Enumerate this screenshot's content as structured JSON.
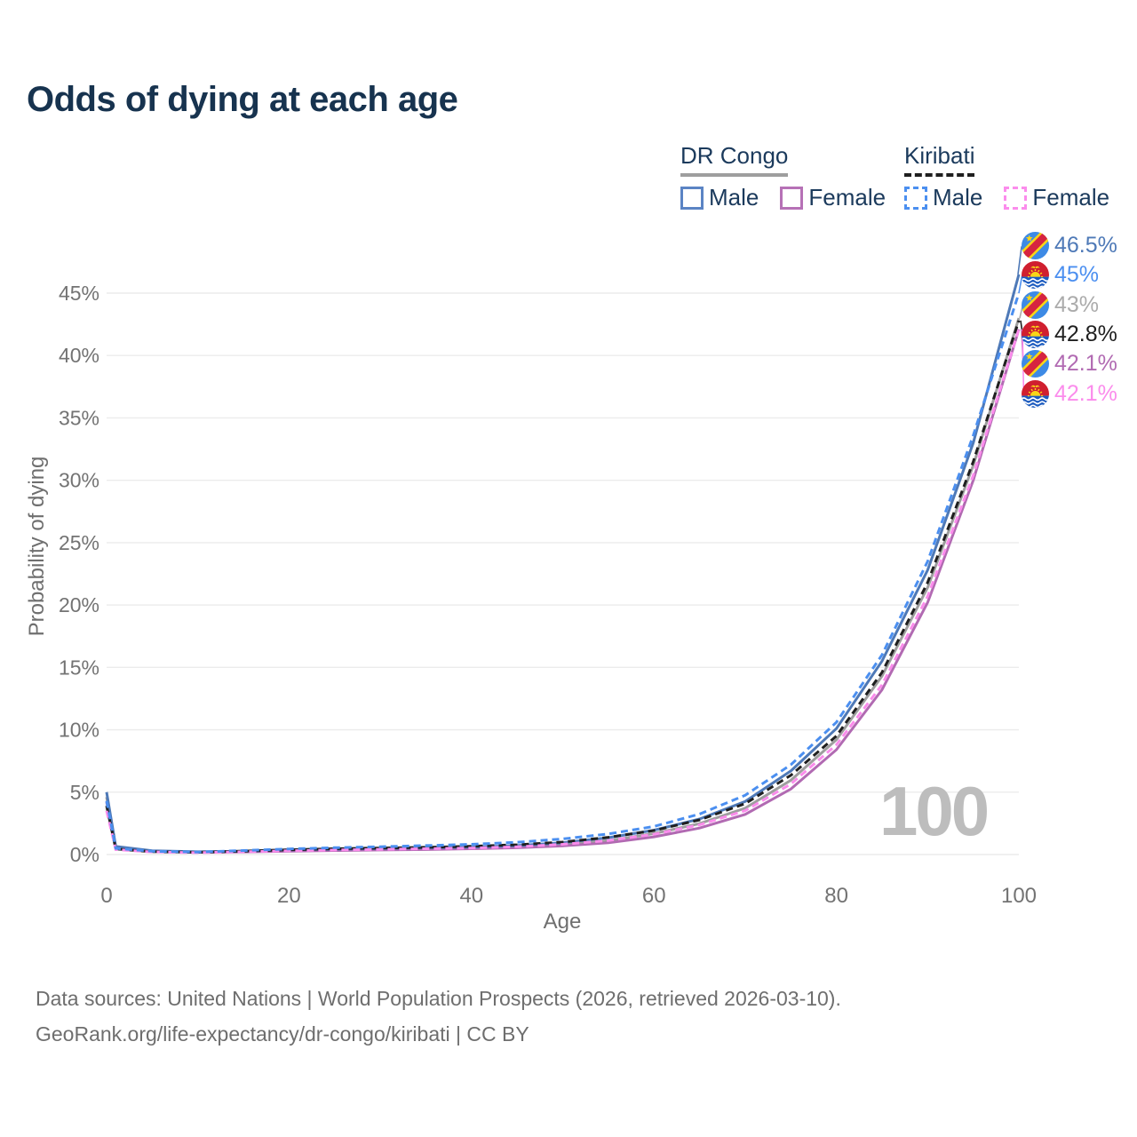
{
  "title": "Odds of dying at each age",
  "legend": {
    "groups": [
      {
        "label": "DR Congo",
        "line_style": "solid",
        "underline_color": "#9e9e9e",
        "items": [
          {
            "label": "Male",
            "color": "#5b84c4"
          },
          {
            "label": "Female",
            "color": "#b671b6"
          }
        ]
      },
      {
        "label": "Kiribati",
        "line_style": "dashed",
        "underline_color": "#1f1f1f",
        "items": [
          {
            "label": "Male",
            "color": "#4b8ff0"
          },
          {
            "label": "Female",
            "color": "#fb8cec"
          }
        ]
      }
    ]
  },
  "watermark": "100",
  "axes": {
    "x_title": "Age",
    "y_title": "Probability of dying"
  },
  "footer": {
    "line1": "Data sources: United Nations | World Population Prospects (2026, retrieved 2026-03-10).",
    "line2": "GeoRank.org/life-expectancy/dr-congo/kiribati | CC BY"
  },
  "chart_data": {
    "type": "line",
    "title": "Odds of dying at each age",
    "xlabel": "Age",
    "ylabel": "Probability of dying",
    "xlim": [
      0,
      100
    ],
    "ylim": [
      0,
      47
    ],
    "x_ticks": [
      0,
      20,
      40,
      60,
      80,
      100
    ],
    "y_ticks": [
      0,
      5,
      10,
      15,
      20,
      25,
      30,
      35,
      40,
      45
    ],
    "y_tick_suffix": "%",
    "grid": "horizontal",
    "legend_position": "top-right",
    "x": [
      0,
      1,
      5,
      10,
      15,
      20,
      25,
      30,
      35,
      40,
      45,
      50,
      55,
      60,
      65,
      70,
      75,
      80,
      85,
      90,
      95,
      100
    ],
    "series": [
      {
        "name": "DR Congo Male",
        "country": "DR Congo",
        "sex": "Male",
        "line_style": "solid",
        "color": "#4e79b7",
        "label_color": "#4e79b7",
        "end_label": "46.5%",
        "flag": "drc",
        "values": [
          5.0,
          0.65,
          0.3,
          0.22,
          0.27,
          0.37,
          0.43,
          0.48,
          0.54,
          0.6,
          0.72,
          0.95,
          1.35,
          1.95,
          2.85,
          4.25,
          6.7,
          10.1,
          15.5,
          22.8,
          33.0,
          46.5
        ]
      },
      {
        "name": "Kiribati Male",
        "country": "Kiribati",
        "sex": "Male",
        "line_style": "dashed",
        "color": "#4b8ff0",
        "label_color": "#4b8ff0",
        "end_label": "45%",
        "flag": "kir",
        "values": [
          4.3,
          0.5,
          0.26,
          0.2,
          0.32,
          0.45,
          0.55,
          0.63,
          0.72,
          0.82,
          0.98,
          1.25,
          1.65,
          2.25,
          3.25,
          4.75,
          7.2,
          10.6,
          16.0,
          23.5,
          33.6,
          45.0
        ]
      },
      {
        "name": "DR Congo",
        "country": "DR Congo",
        "sex": "Both",
        "line_style": "solid",
        "color": "#9e9e9e",
        "label_color": "#ababab",
        "end_label": "43%",
        "flag": "drc",
        "values": [
          4.6,
          0.6,
          0.28,
          0.2,
          0.24,
          0.32,
          0.38,
          0.42,
          0.47,
          0.53,
          0.63,
          0.82,
          1.12,
          1.68,
          2.48,
          3.72,
          5.95,
          9.2,
          14.3,
          21.4,
          31.2,
          43.0
        ]
      },
      {
        "name": "Kiribati",
        "country": "Kiribati",
        "sex": "Both",
        "line_style": "dashed",
        "color": "#1f1f1f",
        "label_color": "#1f1f1f",
        "end_label": "42.8%",
        "flag": "kir",
        "values": [
          3.9,
          0.45,
          0.23,
          0.18,
          0.27,
          0.38,
          0.46,
          0.52,
          0.58,
          0.66,
          0.78,
          1.0,
          1.38,
          1.92,
          2.78,
          4.08,
          6.35,
          9.5,
          14.6,
          21.8,
          31.5,
          42.8
        ]
      },
      {
        "name": "DR Congo Female",
        "country": "DR Congo",
        "sex": "Female",
        "line_style": "solid",
        "color": "#b16ab2",
        "label_color": "#b16ab2",
        "end_label": "42.1%",
        "flag": "drc",
        "values": [
          4.2,
          0.55,
          0.26,
          0.18,
          0.21,
          0.27,
          0.32,
          0.36,
          0.4,
          0.46,
          0.54,
          0.7,
          0.95,
          1.42,
          2.12,
          3.22,
          5.25,
          8.4,
          13.2,
          20.2,
          30.0,
          42.1
        ]
      },
      {
        "name": "Kiribati Female",
        "country": "Kiribati",
        "sex": "Female",
        "line_style": "dashed",
        "color": "#fb8cec",
        "label_color": "#fb8cec",
        "end_label": "42.1%",
        "flag": "kir",
        "values": [
          3.5,
          0.4,
          0.21,
          0.15,
          0.22,
          0.3,
          0.36,
          0.41,
          0.46,
          0.52,
          0.62,
          0.82,
          1.12,
          1.62,
          2.38,
          3.52,
          5.65,
          8.8,
          13.6,
          20.7,
          30.4,
          42.1
        ]
      }
    ]
  }
}
